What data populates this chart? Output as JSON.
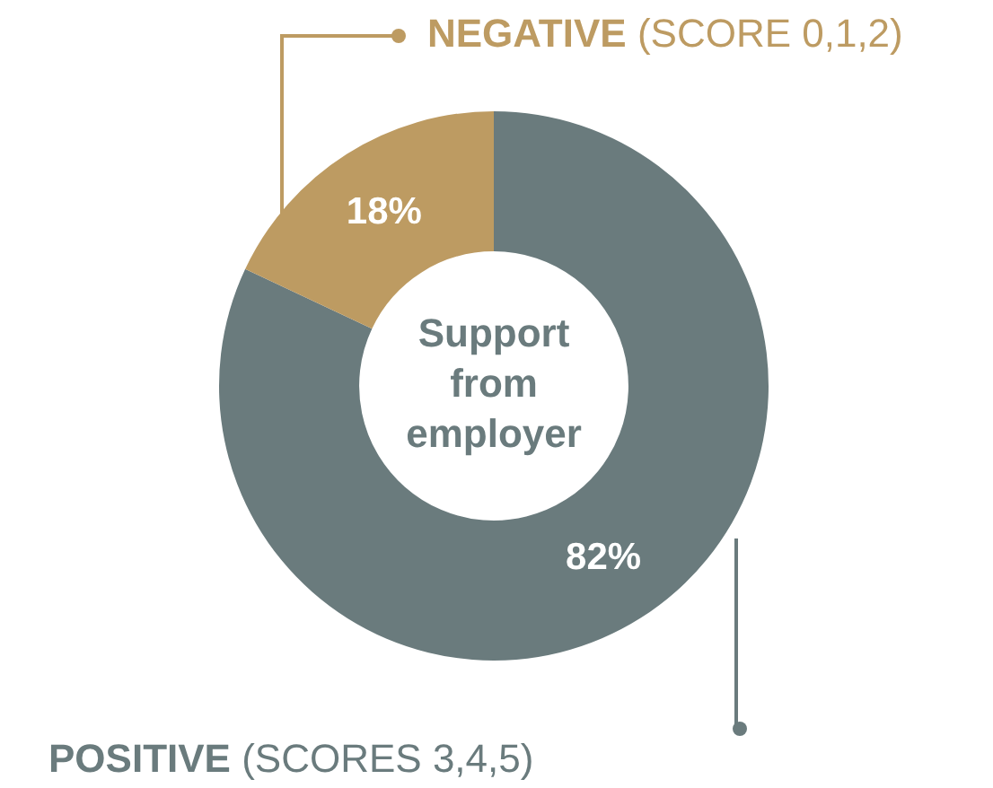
{
  "chart_data": {
    "type": "donut",
    "title": "Support from employer",
    "categories": [
      "POSITIVE (SCORES 3,4,5)",
      "NEGATIVE (SCORE 0,1,2)"
    ],
    "values": [
      82,
      18
    ],
    "colors": [
      "#6a7b7d",
      "#bd9b62"
    ],
    "value_labels": [
      "82%",
      "18%"
    ]
  }
}
